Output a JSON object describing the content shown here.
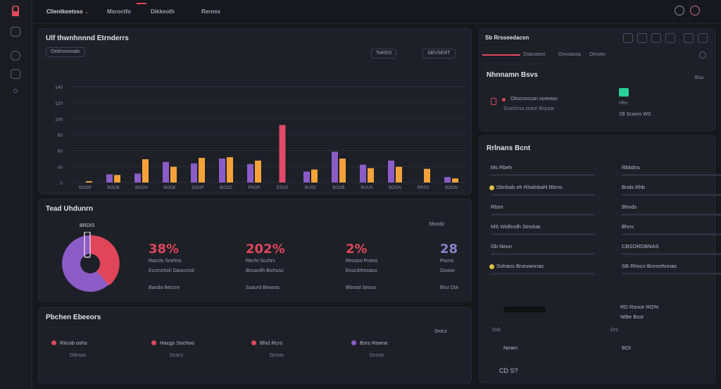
{
  "colors": {
    "pink": "#e04a6a",
    "orange": "#f5a23a",
    "purple": "#8b5cc8",
    "red": "#e0455a",
    "green": "#2bd19a",
    "bg": "#16181e",
    "panel": "#1d2027"
  },
  "topbar": {
    "tabs": [
      "Clientkeetsss",
      "Msroctfo",
      "Dikkeoth",
      "Rernss"
    ]
  },
  "main_chart": {
    "title": "Ulf thwnhnnnd Etrnderrs",
    "filter": "Oekhonnnaln",
    "chip_a": "ToKEO",
    "chip_b": "SBVSERT",
    "chart_data": {
      "type": "bar",
      "y_ticks": [
        "140",
        "120",
        "100",
        "80",
        "60",
        "40",
        "0"
      ],
      "categories": [
        "BOOR",
        "BOOB",
        "BOON",
        "BOOK",
        "DOUP",
        "BOOC",
        "PNOP",
        "ESUS",
        "BUSE",
        "BOOB",
        "BUUS",
        "BOGN",
        "RRSS",
        "BOON"
      ],
      "series": [
        {
          "color": "purple",
          "values": [
            0,
            12,
            13,
            30,
            28,
            35,
            27,
            0,
            16,
            45,
            26,
            32,
            0,
            8
          ]
        },
        {
          "color": "orange",
          "values": [
            2,
            11,
            34,
            23,
            36,
            37,
            32,
            0,
            19,
            35,
            21,
            23,
            20,
            6
          ]
        },
        {
          "color": "pink",
          "values": [
            0,
            0,
            0,
            0,
            0,
            0,
            0,
            84,
            0,
            0,
            0,
            0,
            0,
            0
          ]
        }
      ],
      "ylim": [
        0,
        140
      ]
    }
  },
  "kpi": {
    "title": "Tead Uhdunrn",
    "badge": "Shxxtlz",
    "pie_label": "BRDIS",
    "pie_fraction": 0.58,
    "items": [
      {
        "value": "38%",
        "l1": "Raccts Scehns",
        "l2": "Ecsrnchsh Daoccrnd",
        "l3": "Baoda  Beccre"
      },
      {
        "value": "202%",
        "l1": "Recht Scchrs",
        "l2": "Bncantlh Bichusz",
        "l3": "Ssaurd  Beaoos"
      },
      {
        "value": "2%",
        "l1": "Resoco Pcens",
        "l2": "Enscdrhnnaco",
        "l3": "Blsnod  Seous"
      },
      {
        "value": "28",
        "l1": "Pocns",
        "l2": "Doooo",
        "l3": "Brsr  Dot"
      }
    ]
  },
  "lower": {
    "title": "Pbchen Ebeeors",
    "chip": "Srocz",
    "items": [
      {
        "label": "Riicob oshs",
        "color": "red",
        "sub": "Ddcsas"
      },
      {
        "label": "Hacgs Sochoo",
        "color": "red",
        "sub": "Dcscs"
      },
      {
        "label": "Bhcl Rcrs",
        "color": "red",
        "sub": "Dcsoo"
      },
      {
        "label": "Bsrs Roana",
        "color": "purple",
        "sub": "Dccoo"
      }
    ]
  },
  "right_top": {
    "title": "Sb Rrsseedacsn",
    "tabs": [
      "Dsanaseo",
      "Onnsaosa",
      "Oerseo"
    ],
    "heading": "Nhnnamn Bsvs",
    "corner": "Bsa",
    "row1": "Obscooscan oceeass",
    "row2": "Scachrsa snanr  Bcpsar",
    "side1": "Hbs",
    "side2": "1B Scanrs WS"
  },
  "right_bottom": {
    "title": "Rrlnans Bcnt",
    "left": [
      {
        "label": "Ms Rbeh"
      },
      {
        "label": "Dbnbab eh Rhalnbahl Bbms",
        "dot": true
      },
      {
        "label": "Rbsn"
      },
      {
        "label": "MS Widhndh Stnckat"
      },
      {
        "label": "Ob Neun"
      },
      {
        "label": "Sofrans Bneuwnnas",
        "dot": true
      }
    ],
    "right": [
      {
        "label": "Rbbdns"
      },
      {
        "label": "Bnds Rhb"
      },
      {
        "label": "Bhnds"
      },
      {
        "label": "Bhns"
      },
      {
        "label": "CBSORDBNAS"
      },
      {
        "label": "SB Rhocn Bnnnnhnnas"
      }
    ],
    "b1": "RD Rsnce  RO%",
    "b2": "WBe Bssr",
    "b3": "Dsk",
    "b4": "Drs",
    "b5": "Neam",
    "b6": "BOI",
    "footer": "CD  S?"
  }
}
